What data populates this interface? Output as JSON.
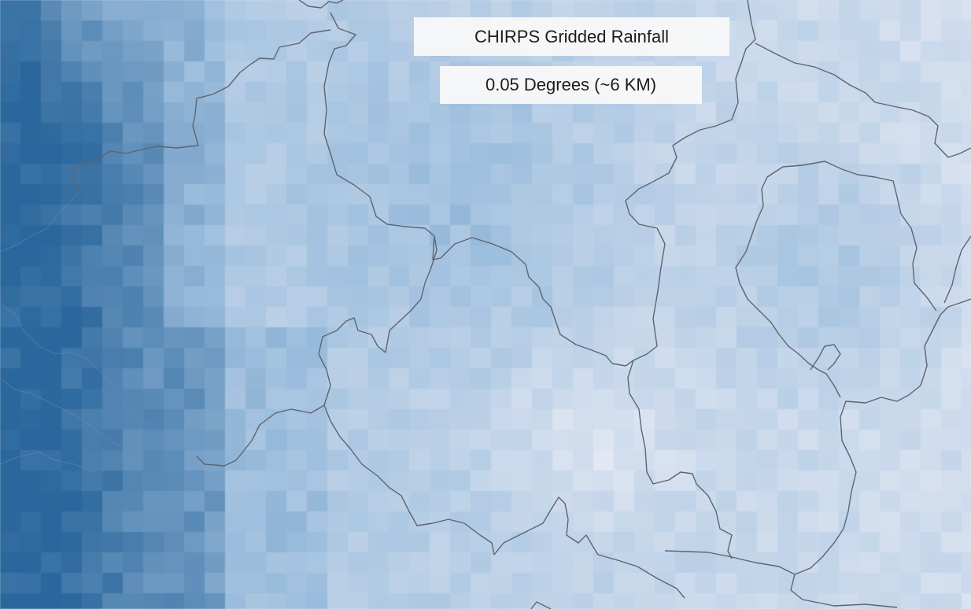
{
  "title": "CHIRPS Gridded Rainfall",
  "resolution": "0.05 Degrees (~6 KM)",
  "colors": {
    "low_rain": "#e4e9f4",
    "mid_rain": "#9dbedd",
    "high_rain": "#2b679c",
    "border": "#5f6470"
  }
}
